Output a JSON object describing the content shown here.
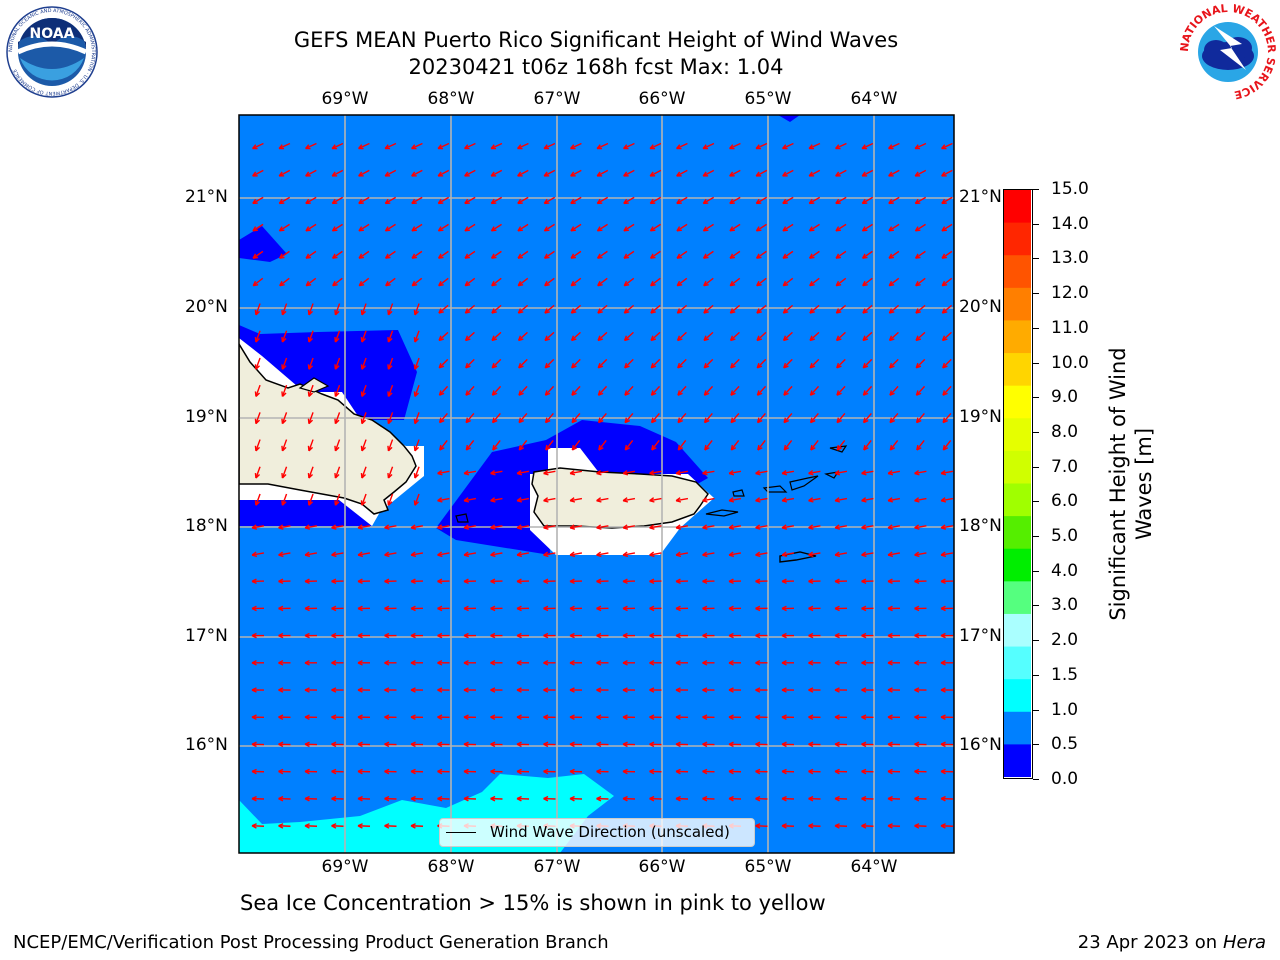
{
  "header": {
    "title_line1": "GEFS MEAN Puerto Rico Significant Height of Wind Waves",
    "title_line2": "20230421 t06z 168h fcst   Max: 1.04"
  },
  "logos": {
    "noaa_text": "NOAA",
    "noaa_ring": "NATIONAL OCEANIC AND ATMOSPHERIC ADMINISTRATION · U.S. DEPARTMENT OF COMMERCE",
    "nws_ring": "NATIONAL WEATHER SERVICE"
  },
  "map": {
    "lon_labels": [
      "69°W",
      "68°W",
      "67°W",
      "66°W",
      "65°W",
      "64°W"
    ],
    "lat_labels": [
      "21°N",
      "20°N",
      "19°N",
      "18°N",
      "17°N",
      "16°N"
    ],
    "legend_label": "Wind Wave Direction (unscaled)",
    "colors": {
      "ocean": "#0080ff",
      "low": "#0000ff",
      "cyan": "#00ffff",
      "land": "#f0eedc",
      "arrow": "#ff0000",
      "grid": "#b4b4b4"
    }
  },
  "colorbar": {
    "label": "Significant Height of Wind Waves [m]",
    "label_line1": "Significant Height of Wind",
    "label_line2": "Waves [m]",
    "ticks": [
      "15.0",
      "14.0",
      "13.0",
      "12.0",
      "11.0",
      "10.0",
      "9.0",
      "8.0",
      "7.0",
      "6.0",
      "5.0",
      "4.0",
      "3.0",
      "2.0",
      "1.5",
      "1.0",
      "0.5",
      "0.0"
    ],
    "colors_top_to_bottom": [
      "#ff0000",
      "#ff2600",
      "#ff5400",
      "#ff7f00",
      "#ffab00",
      "#ffd500",
      "#ffff00",
      "#e5ff00",
      "#d0ff00",
      "#a0ff00",
      "#55ee00",
      "#00ee00",
      "#55ff7f",
      "#aaffff",
      "#55ffff",
      "#00ffff",
      "#0080ff",
      "#0000ff"
    ]
  },
  "notes": {
    "sea_ice": "Sea Ice Concentration > 15% is shown in pink to yellow"
  },
  "footer": {
    "left": "NCEP/EMC/Verification Post Processing Product Generation Branch",
    "right_prefix": "23 Apr 2023 on ",
    "right_host": "Hera"
  }
}
